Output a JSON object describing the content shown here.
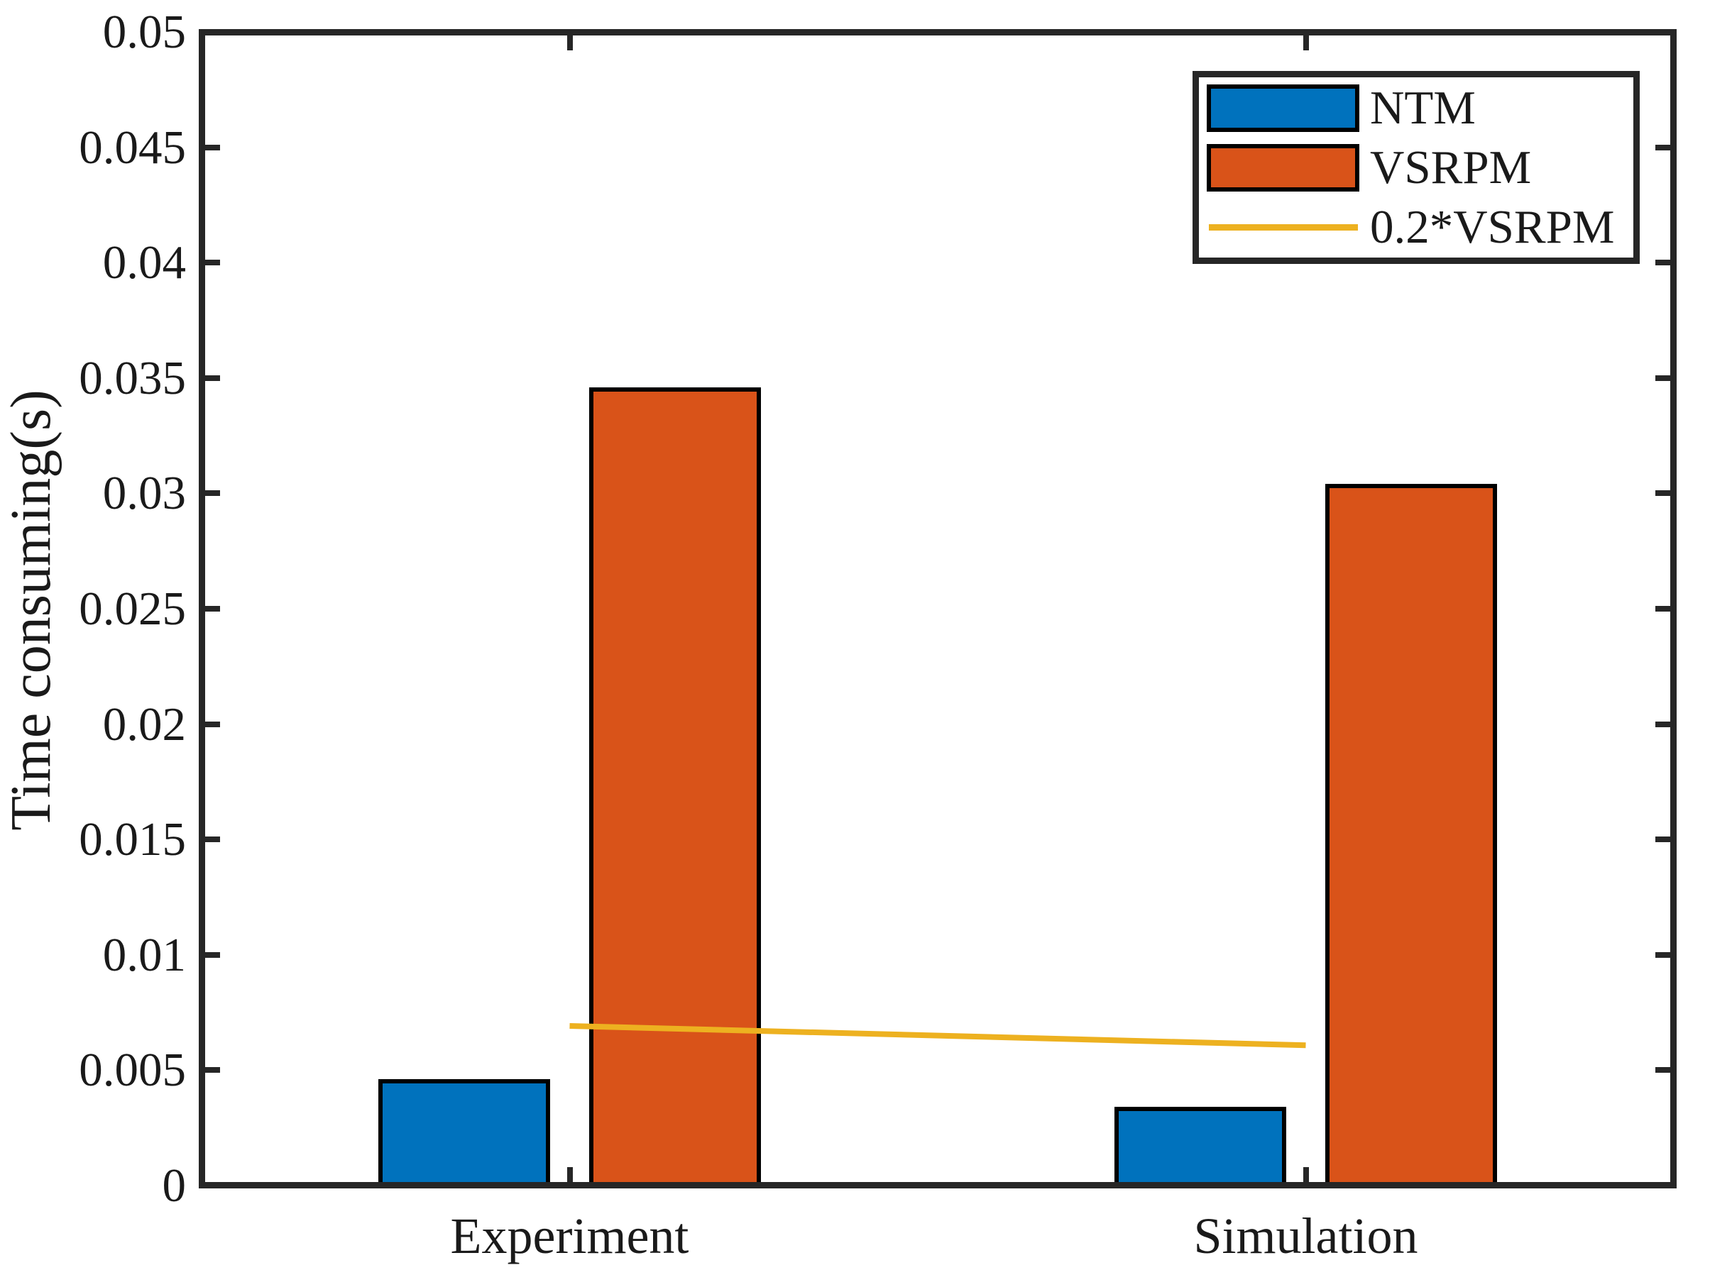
{
  "figure": {
    "background": "#FFFFFF"
  },
  "chart_data": {
    "type": "bar",
    "title": "",
    "categories": [
      "Experiment",
      "Simulation"
    ],
    "series": [
      {
        "name": "NTM",
        "kind": "bar",
        "color": "#0072BD",
        "edge_color": "#000000",
        "values": [
          0.0046,
          0.0034
        ]
      },
      {
        "name": "VSRPM",
        "kind": "bar",
        "color": "#D95319",
        "edge_color": "#000000",
        "values": [
          0.0346,
          0.0304
        ]
      },
      {
        "name": "0.2*VSRPM",
        "kind": "line",
        "color": "#EDB120",
        "values": [
          0.00692,
          0.00608
        ]
      }
    ],
    "xlabel": "",
    "ylabel": "Time consuming(s)",
    "ylim": [
      0,
      0.05
    ],
    "xlim": [
      0.5,
      2.5
    ],
    "yticks": [
      0,
      0.005,
      0.01,
      0.015,
      0.02,
      0.025,
      0.03,
      0.035,
      0.04,
      0.045,
      0.05
    ],
    "ytick_labels": [
      "0",
      "0.005",
      "0.01",
      "0.015",
      "0.02",
      "0.025",
      "0.03",
      "0.035",
      "0.04",
      "0.045",
      "0.05"
    ],
    "grid": false,
    "legend": {
      "position": "top-right",
      "entries": [
        "NTM",
        "VSRPM",
        "0.2*VSRPM"
      ]
    },
    "axis_color": "#262626",
    "text_color": "#1A1A1A",
    "bar_offset_units": 0.1432,
    "bar_width_units": 0.2335
  }
}
